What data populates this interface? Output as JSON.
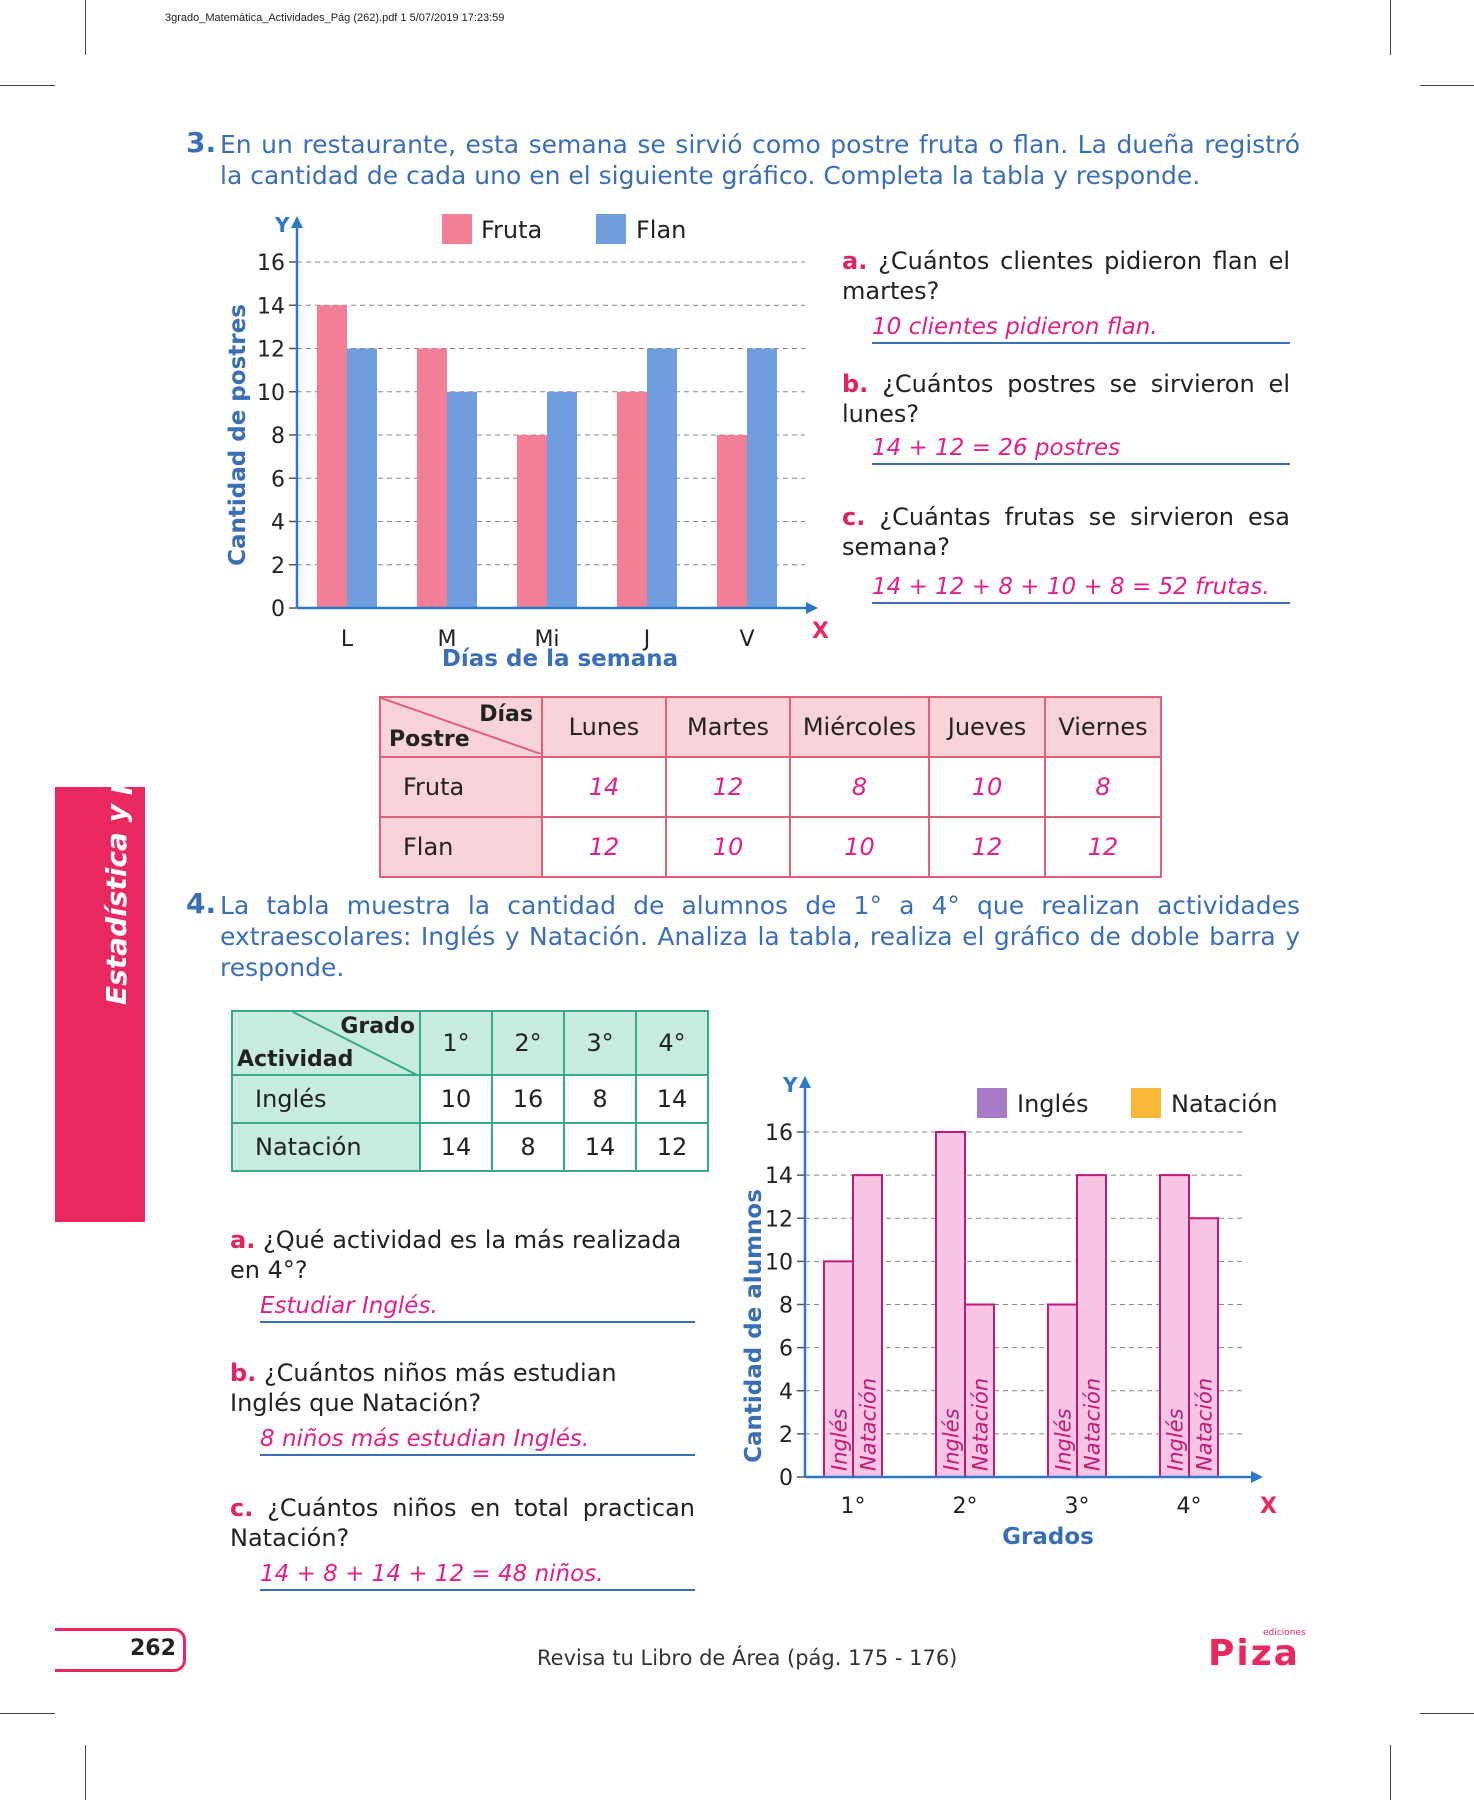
{
  "file_header": "3grado_Matemática_Actividades_Pág (262).pdf   1   5/07/2019   17:23:59",
  "sidebar_label": "Estadística y probabilidad",
  "q3": {
    "number": "3.",
    "text": "En un restaurante, esta semana se sirvió como postre fruta o flan. La dueña registró la cantidad de cada uno en el siguiente gráfico. Completa la tabla y responde.",
    "sub": [
      {
        "letter": "a.",
        "question": "¿Cuántos clientes pidieron flan el martes?",
        "answer": "10 clientes pidieron flan."
      },
      {
        "letter": "b.",
        "question": "¿Cuántos postres se sirvieron el lunes?",
        "answer": "14 + 12 = 26 postres"
      },
      {
        "letter": "c.",
        "question": "¿Cuántas frutas se sirvieron esa semana?",
        "answer": "14 + 12 + 8 + 10 + 8 = 52 frutas."
      }
    ],
    "table": {
      "corner_top": "Días",
      "corner_bottom": "Postre",
      "columns": [
        "Lunes",
        "Martes",
        "Miércoles",
        "Jueves",
        "Viernes"
      ],
      "rows": [
        {
          "label": "Fruta",
          "values": [
            "14",
            "12",
            "8",
            "10",
            "8"
          ]
        },
        {
          "label": "Flan",
          "values": [
            "12",
            "10",
            "10",
            "12",
            "12"
          ]
        }
      ]
    }
  },
  "q4": {
    "number": "4.",
    "text": "La tabla muestra la cantidad de alumnos de 1° a 4° que realizan actividades extraescolares: Inglés y Natación. Analiza la tabla, realiza el gráfico de doble barra y responde.",
    "table": {
      "corner_top": "Grado",
      "corner_bottom": "Actividad",
      "columns": [
        "1°",
        "2°",
        "3°",
        "4°"
      ],
      "rows": [
        {
          "label": "Inglés",
          "values": [
            "10",
            "16",
            "8",
            "14"
          ]
        },
        {
          "label": "Natación",
          "values": [
            "14",
            "8",
            "14",
            "12"
          ]
        }
      ]
    },
    "sub": [
      {
        "letter": "a.",
        "question": "¿Qué actividad es la más realizada en 4°?",
        "answer": "Estudiar Inglés."
      },
      {
        "letter": "b.",
        "question": "¿Cuántos niños más estudian Inglés que Natación?",
        "answer": "8 niños más estudian Inglés."
      },
      {
        "letter": "c.",
        "question": "¿Cuántos niños en total practican Natación?",
        "answer": "14 + 8 + 14 + 12 = 48 niños."
      }
    ]
  },
  "chart_data": [
    {
      "type": "bar",
      "categories": [
        "L",
        "M",
        "Mi",
        "J",
        "V"
      ],
      "series": [
        {
          "name": "Fruta",
          "values": [
            14,
            12,
            8,
            10,
            8
          ],
          "color": "#f27f96"
        },
        {
          "name": "Flan",
          "values": [
            12,
            10,
            10,
            12,
            12
          ],
          "color": "#6f9ddd"
        }
      ],
      "xlabel": "Días de la semana",
      "ylabel": "Cantidad de postres",
      "x_axis_letter": "X",
      "y_axis_letter": "Y",
      "ylim": [
        0,
        16
      ],
      "yticks": [
        0,
        2,
        4,
        6,
        8,
        10,
        12,
        14,
        16
      ],
      "grid": true,
      "legend": "top"
    },
    {
      "type": "bar",
      "categories": [
        "1°",
        "2°",
        "3°",
        "4°"
      ],
      "series": [
        {
          "name": "Inglés",
          "values": [
            10,
            16,
            8,
            14
          ],
          "color": "#f9c5e4",
          "legend_color": "#a97ac8"
        },
        {
          "name": "Natación",
          "values": [
            14,
            8,
            14,
            12
          ],
          "color": "#f9c5e4",
          "legend_color": "#f8b938"
        }
      ],
      "bar_labels": [
        "Inglés",
        "Natación"
      ],
      "xlabel": "Grados",
      "ylabel": "Cantidad de alumnos",
      "x_axis_letter": "X",
      "y_axis_letter": "Y",
      "ylim": [
        0,
        16
      ],
      "yticks": [
        0,
        2,
        4,
        6,
        8,
        10,
        12,
        14,
        16
      ],
      "grid": true,
      "legend": "top-right"
    }
  ],
  "footer": {
    "page_number": "262",
    "review_text": "Revisa tu Libro de Área (pág. 175 - 176)",
    "brand_small": "ediciones",
    "brand": "Piza"
  }
}
